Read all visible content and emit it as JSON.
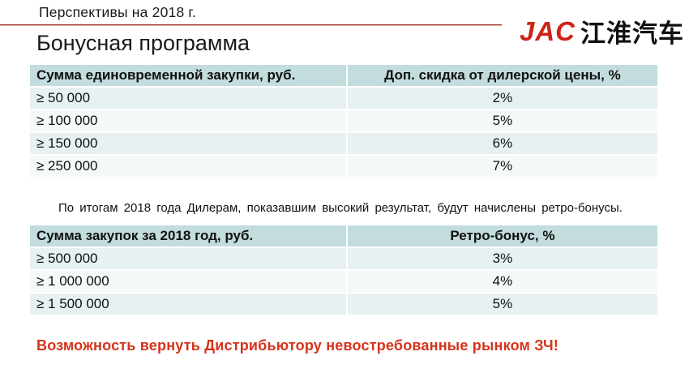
{
  "header": {
    "subtitle": "Перспективы на 2018 г.",
    "logo": {
      "brand": "JAC",
      "brand_cn": "江淮汽车"
    }
  },
  "page_title": "Бонусная программа",
  "table1": {
    "columns": [
      "Сумма единовременной закупки, руб.",
      "Доп. скидка от дилерской цены, %"
    ],
    "rows": [
      {
        "amount": "≥ 50 000",
        "pct": "2%"
      },
      {
        "amount": "≥ 100 000",
        "pct": "5%"
      },
      {
        "amount": "≥ 150 000",
        "pct": "6%"
      },
      {
        "amount": "≥ 250 000",
        "pct": "7%"
      }
    ]
  },
  "note": "По итогам 2018 года Дилерам, показавшим высокий результат, будут начислены ретро-бонусы.",
  "table2": {
    "columns": [
      "Сумма закупок за 2018 год, руб.",
      "Ретро-бонус, %"
    ],
    "rows": [
      {
        "amount": "≥ 500 000",
        "pct": "3%"
      },
      {
        "amount": "≥ 1 000 000",
        "pct": "4%"
      },
      {
        "amount": "≥ 1 500 000",
        "pct": "5%"
      }
    ]
  },
  "footer_note": "Возможность вернуть Дистрибьютору невостребованные рынком ЗЧ!",
  "colors": {
    "accent_red_text": "#d6331c",
    "brand_red": "#cc2418",
    "divider_red": "#9e3b30",
    "table_header_bg": "#c3dcdd",
    "row_odd_bg": "#e7f1f1",
    "row_even_bg": "#f4f9f9"
  }
}
